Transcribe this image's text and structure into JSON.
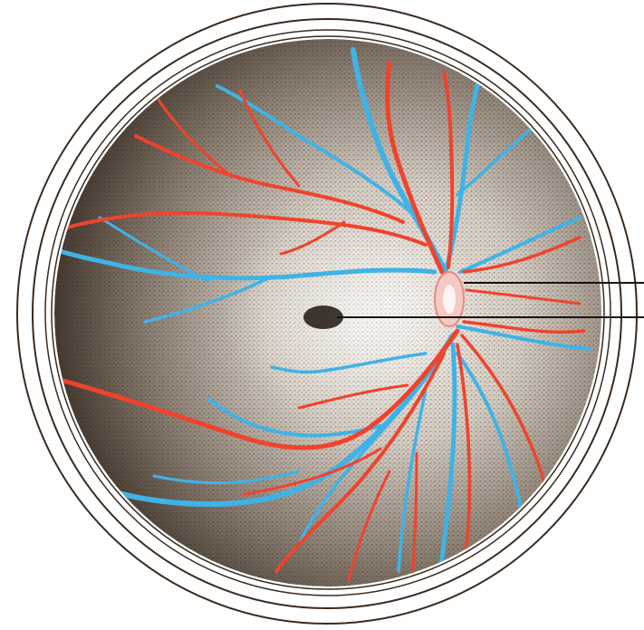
{
  "illustration": {
    "subject": "retina-fundus",
    "colors": {
      "background": "#ffffff",
      "ring": "#3a2a1e",
      "fundus_base": "#8c7f73",
      "fundus_light": "#efeae2",
      "fundus_dark": "#3f342b",
      "artery": "#f0432c",
      "vein": "#3fb3e6",
      "optic_disc": "#f6c9c4",
      "macula": "#2a211b",
      "leader_line": "#1a1410"
    }
  }
}
